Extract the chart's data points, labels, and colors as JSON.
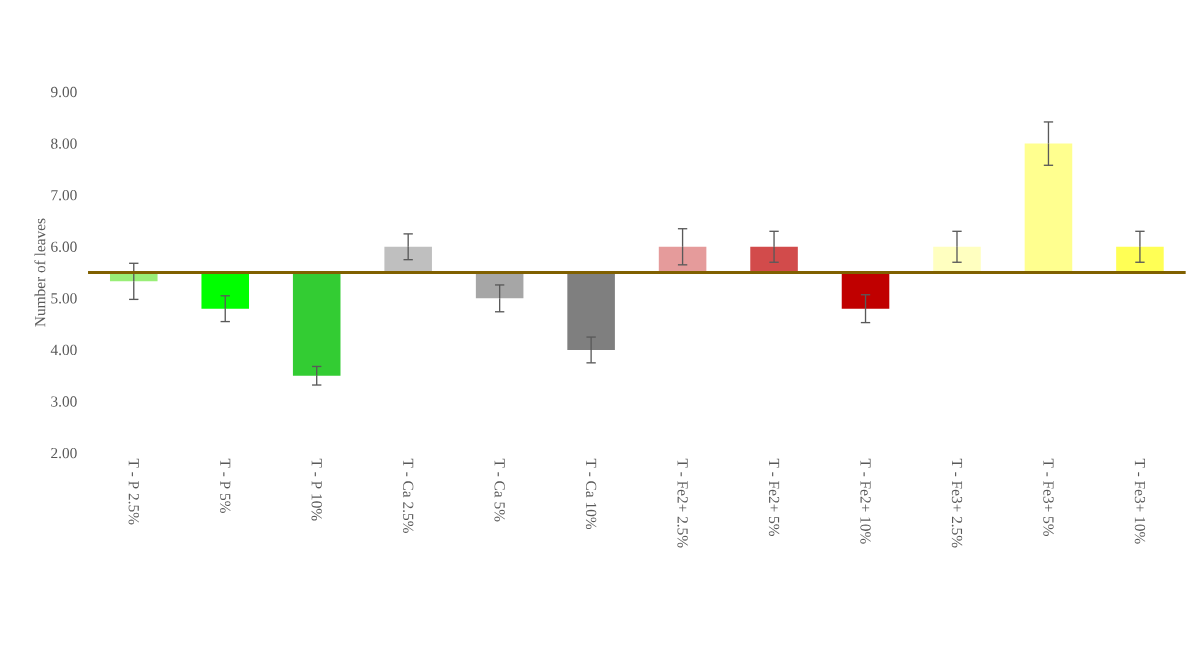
{
  "chart_data": {
    "type": "bar",
    "ylabel": "Number of leaves",
    "categories": [
      "T - P 2.5%",
      "T - P 5%",
      "T - P 10%",
      "T - Ca 2.5%",
      "T - Ca 5%",
      "T - Ca 10%",
      "T - Fe2+ 2.5%",
      "T - Fe2+ 5%",
      "T - Fe2+ 10%",
      "T - Fe3+ 2.5%",
      "T - Fe3+ 5%",
      "T - Fe3+ 10%"
    ],
    "base": [
      5.5,
      5.5,
      5.5,
      5.5,
      5.5,
      5.5,
      5.5,
      5.5,
      5.5,
      5.5,
      5.5,
      5.5
    ],
    "values": [
      -0.17,
      -0.7,
      -2.0,
      0.5,
      -0.5,
      -1.5,
      0.5,
      0.5,
      -0.7,
      0.5,
      2.5,
      0.5
    ],
    "errors": [
      0.35,
      0.25,
      0.18,
      0.25,
      0.26,
      0.25,
      0.35,
      0.3,
      0.27,
      0.3,
      0.42,
      0.3
    ],
    "colors": [
      "#99ee77",
      "#00ff00",
      "#33cc33",
      "#bfbfbf",
      "#a6a6a6",
      "#7f7f7f",
      "#e59b9b",
      "#d24b4b",
      "#c00000",
      "#ffffc0",
      "#ffff8f",
      "#ffff55"
    ],
    "ylim": [
      2,
      9
    ],
    "yticks": [
      {
        "value": 2,
        "label": "2.00"
      },
      {
        "value": 3,
        "label": "3.00"
      },
      {
        "value": 4,
        "label": "4.00"
      },
      {
        "value": 5,
        "label": "5.00"
      },
      {
        "value": 6,
        "label": "6.00"
      },
      {
        "value": 7,
        "label": "7.00"
      },
      {
        "value": 8,
        "label": "8.00"
      },
      {
        "value": 9,
        "label": "9.00"
      }
    ],
    "ref_lines": [
      {
        "axis": "y",
        "value": 5.5,
        "color": "#806000"
      }
    ],
    "grid": false
  }
}
